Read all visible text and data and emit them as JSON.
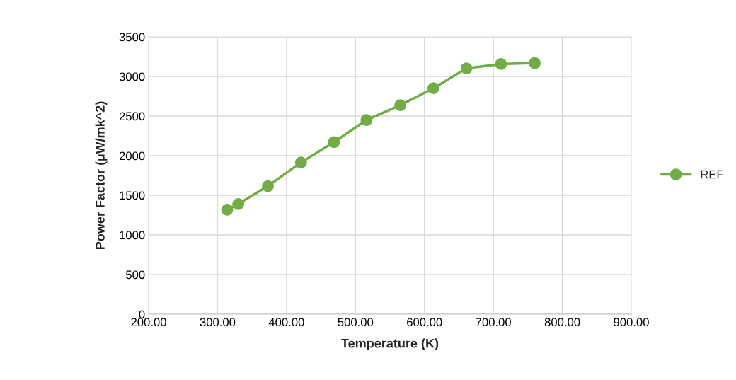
{
  "chart_data": {
    "type": "line",
    "xlabel": "Temperature (K)",
    "ylabel": "Power Factor (µW/mk^2)",
    "x": [
      314,
      330,
      373,
      421,
      469,
      516,
      565,
      613,
      661,
      711,
      760
    ],
    "series": [
      {
        "name": "REF",
        "color": "#70ad47",
        "values": [
          1318,
          1390,
          1616,
          1914,
          2172,
          2450,
          2637,
          2851,
          3102,
          3157,
          3169
        ]
      }
    ],
    "xlim": [
      200,
      900
    ],
    "xticks": [
      {
        "value": 200,
        "label": "200.00"
      },
      {
        "value": 300,
        "label": "300.00"
      },
      {
        "value": 400,
        "label": "400.00"
      },
      {
        "value": 500,
        "label": "500.00"
      },
      {
        "value": 600,
        "label": "600.00"
      },
      {
        "value": 700,
        "label": "700.00"
      },
      {
        "value": 800,
        "label": "800.00"
      },
      {
        "value": 900,
        "label": "900.00"
      }
    ],
    "ylim": [
      0,
      3500
    ],
    "yticks": [
      0,
      500,
      1000,
      1500,
      2000,
      2500,
      3000,
      3500
    ],
    "grid": true,
    "legend": "right",
    "marker": "circle",
    "line_style": "solid"
  }
}
